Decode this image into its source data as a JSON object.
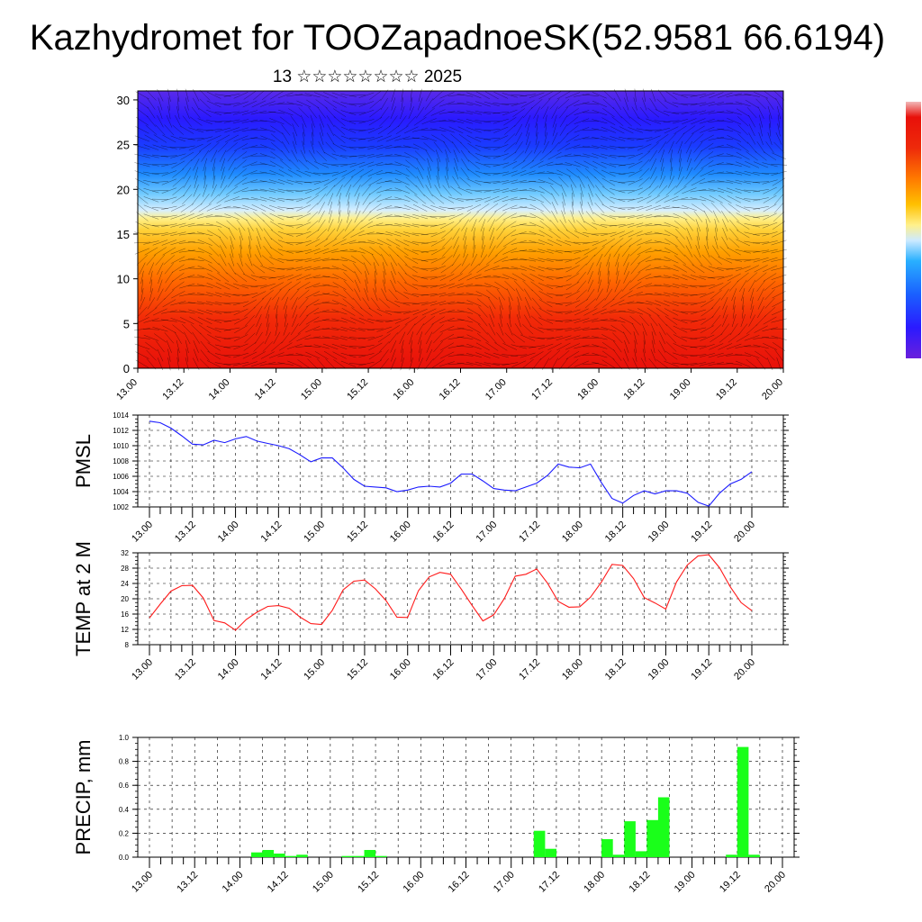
{
  "header": {
    "title": "Kazhydromet for TOOZapadnoeSK(52.9581 66.6194)",
    "subtitle": "13 ☆☆☆☆☆☆☆☆ 2025"
  },
  "time_ticks": [
    "13.00",
    "13.12",
    "14.00",
    "14.12",
    "15.00",
    "15.12",
    "16.00",
    "16.12",
    "17.00",
    "17.12",
    "18.00",
    "18.12",
    "19.00",
    "19.12",
    "20.00"
  ],
  "colors": {
    "pmsl_line": "#1a1aff",
    "temp_line": "#ff1a1a",
    "precip_bar": "#1aff1a"
  },
  "chart_data": [
    {
      "type": "heatmap",
      "name": "cross-section",
      "yticks": [
        "0",
        "5",
        "10",
        "15",
        "20",
        "25",
        "30"
      ],
      "ylim": [
        0,
        31
      ],
      "x_ticks": [
        "13.00",
        "13.12",
        "14.00",
        "14.12",
        "15.00",
        "15.12",
        "16.00",
        "16.12",
        "17.00",
        "17.12",
        "18.00",
        "18.12",
        "19.00",
        "19.12",
        "20.00"
      ],
      "colorbar_colors": [
        "#6a1fdc",
        "#2a1aff",
        "#1a50ff",
        "#29b0ff",
        "#bfe6ff",
        "#ffe84d",
        "#ffb000",
        "#ff6a00",
        "#e8100a",
        "#f2b0b0"
      ]
    },
    {
      "type": "line",
      "ylabel": "PMSL",
      "ylim": [
        1002,
        1014
      ],
      "yticks": [
        "1002",
        "1004",
        "1006",
        "1008",
        "1010",
        "1012",
        "1014"
      ],
      "x_ticks": [
        "13.00",
        "13.12",
        "14.00",
        "14.12",
        "15.00",
        "15.12",
        "16.00",
        "16.12",
        "17.00",
        "17.12",
        "18.00",
        "18.12",
        "19.00",
        "19.12",
        "20.00"
      ],
      "x": [
        0,
        3,
        6,
        9,
        12,
        15,
        18,
        21,
        24,
        27,
        30,
        33,
        36,
        39,
        42,
        45,
        48,
        51,
        54,
        57,
        60,
        63,
        66,
        69,
        72,
        75,
        78,
        81,
        84,
        87,
        90,
        93,
        96,
        99,
        102,
        105,
        108,
        111,
        114,
        117,
        120,
        123,
        126,
        129,
        132,
        135,
        138,
        141,
        144,
        147,
        150,
        153,
        156,
        159,
        162,
        165,
        168
      ],
      "values": [
        1013.2,
        1013.0,
        1012.3,
        1011.3,
        1010.2,
        1010.1,
        1010.7,
        1010.4,
        1010.9,
        1011.2,
        1010.6,
        1010.3,
        1010.0,
        1009.6,
        1008.8,
        1007.9,
        1008.4,
        1008.4,
        1007.1,
        1005.6,
        1004.7,
        1004.6,
        1004.5,
        1004.0,
        1004.2,
        1004.6,
        1004.7,
        1004.6,
        1005.1,
        1006.3,
        1006.3,
        1005.4,
        1004.4,
        1004.2,
        1004.1,
        1004.6,
        1005.1,
        1006.1,
        1007.6,
        1007.2,
        1007.1,
        1007.6,
        1005.2,
        1003.1,
        1002.5,
        1003.5,
        1004.1,
        1003.7,
        1004.1,
        1004.1,
        1003.8,
        1002.6,
        1002.1,
        1003.8,
        1005.0,
        1005.6,
        1006.6
      ]
    },
    {
      "type": "line",
      "ylabel": "TEMP at 2 M",
      "ylim": [
        8,
        32
      ],
      "yticks": [
        "8",
        "12",
        "16",
        "20",
        "24",
        "28",
        "32"
      ],
      "x_ticks": [
        "13.00",
        "13.12",
        "14.00",
        "14.12",
        "15.00",
        "15.12",
        "16.00",
        "16.12",
        "17.00",
        "17.12",
        "18.00",
        "18.12",
        "19.00",
        "19.12",
        "20.00"
      ],
      "x": [
        0,
        3,
        6,
        9,
        12,
        15,
        18,
        21,
        24,
        27,
        30,
        33,
        36,
        39,
        42,
        45,
        48,
        51,
        54,
        57,
        60,
        63,
        66,
        69,
        72,
        75,
        78,
        81,
        84,
        87,
        90,
        93,
        96,
        99,
        102,
        105,
        108,
        111,
        114,
        117,
        120,
        123,
        126,
        129,
        132,
        135,
        138,
        141,
        144,
        147,
        150,
        153,
        156,
        159,
        162,
        165,
        168
      ],
      "values": [
        15.0,
        18.6,
        22.0,
        23.4,
        23.5,
        20.2,
        14.3,
        13.7,
        11.8,
        14.6,
        16.5,
        18.0,
        18.2,
        17.5,
        15.2,
        13.5,
        13.3,
        17.0,
        22.3,
        24.6,
        24.9,
        22.6,
        19.5,
        15.2,
        15.1,
        22.1,
        25.7,
        26.9,
        26.4,
        22.5,
        18.2,
        14.2,
        15.8,
        20.1,
        25.9,
        26.4,
        27.8,
        24.1,
        19.3,
        17.8,
        17.9,
        20.4,
        24.3,
        29.0,
        28.7,
        25.3,
        20.3,
        18.9,
        17.3,
        24.4,
        28.8,
        31.2,
        31.5,
        28.1,
        23.1,
        19.0,
        16.9
      ]
    },
    {
      "type": "bar",
      "ylabel": "PRECIP, mm",
      "ylim": [
        0,
        1.0
      ],
      "yticks": [
        "0.0",
        "0.2",
        "0.4",
        "0.6",
        "0.8",
        "1.0"
      ],
      "x_ticks": [
        "13.00",
        "13.12",
        "14.00",
        "14.12",
        "15.00",
        "15.12",
        "16.00",
        "16.12",
        "17.00",
        "17.12",
        "18.00",
        "18.12",
        "19.00",
        "19.12",
        "20.00"
      ],
      "x": [
        27,
        30,
        33,
        36,
        39,
        51,
        54,
        57,
        60,
        102,
        105,
        120,
        123,
        126,
        129,
        132,
        135,
        153,
        156,
        159
      ],
      "values": [
        0.04,
        0.06,
        0.03,
        0.01,
        0.02,
        0.01,
        0.01,
        0.06,
        0.01,
        0.22,
        0.07,
        0.15,
        0.02,
        0.3,
        0.05,
        0.31,
        0.5,
        0.02,
        0.92,
        0.02
      ]
    }
  ]
}
